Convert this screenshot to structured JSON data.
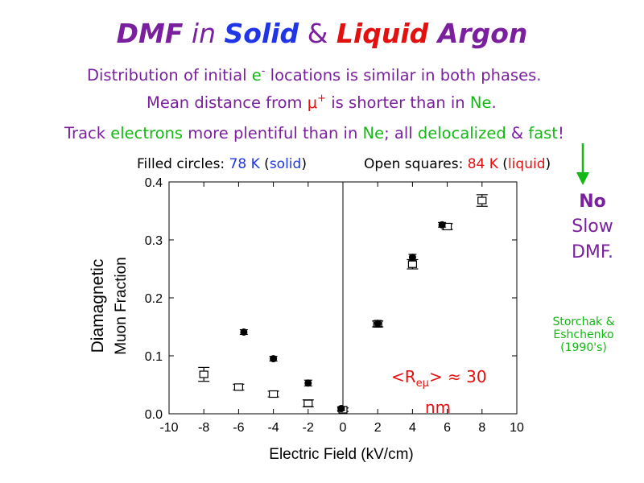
{
  "title": {
    "part1": "DMF",
    "part2": " in ",
    "part3": "Solid",
    "part4": " & ",
    "part5": "Liquid",
    "part6": " Argon"
  },
  "line1": {
    "pre": "Distribution of initial ",
    "e": "e",
    "sup": "-",
    "post": " locations is similar in both phases."
  },
  "line2": {
    "pre": "Mean distance from ",
    "mu": "μ",
    "sup": "+",
    "mid": " is shorter than in ",
    "ne": "Ne",
    "end": "."
  },
  "line3": {
    "a": "Track ",
    "b": "electrons",
    "c": " more plentiful than in ",
    "d": "Ne",
    "e": "; all ",
    "f": "delocalized",
    "g": " & ",
    "h": "fast",
    "i": "!"
  },
  "legend": {
    "filled_label": "Filled circles: ",
    "filled_temp": "78 K",
    "filled_open": " (",
    "filled_phase": "solid",
    "filled_close": ")",
    "open_label": "Open squares: ",
    "open_temp": "84 K",
    "open_open": " (",
    "open_phase": "liquid",
    "open_close": ")"
  },
  "side_note": {
    "line1": "No",
    "line2": "Slow",
    "line3": "DMF."
  },
  "credit": {
    "line1": "Storchak &",
    "line2": "Eshchenko",
    "line3": "(1990's)"
  },
  "annotation": {
    "r_pre": "<R",
    "r_sub": "eμ",
    "r_post": "> ≈ 30",
    "unit": "nm"
  },
  "colors": {
    "purple": "#7a1f9e",
    "blue": "#1f35e6",
    "red": "#e31010",
    "green": "#14b814"
  },
  "chart_data": {
    "type": "scatter",
    "xlabel": "Electric Field (kV/cm)",
    "ylabel_line1": "Diamagnetic",
    "ylabel_line2": "Muon Fraction",
    "xlim": [
      -10,
      10
    ],
    "ylim": [
      0.0,
      0.4
    ],
    "xticks": [
      -10,
      -8,
      -6,
      -4,
      -2,
      0,
      2,
      4,
      6,
      8,
      10
    ],
    "yticks": [
      0.0,
      0.1,
      0.2,
      0.3,
      0.4
    ],
    "xtick_labels": [
      "-10",
      "-8",
      "-6",
      "-4",
      "-2",
      "0",
      "2",
      "4",
      "6",
      "8",
      "10"
    ],
    "ytick_labels": [
      "0.0",
      "0.1",
      "0.2",
      "0.3",
      "0.4"
    ],
    "grid": false,
    "series": [
      {
        "name": "Filled circles: 78 K (solid)",
        "marker": "filled-circle",
        "x": [
          -5.7,
          -4.0,
          -2.0,
          -0.1,
          2.0,
          4.0,
          5.7
        ],
        "y": [
          0.141,
          0.095,
          0.053,
          0.009,
          0.156,
          0.27,
          0.326
        ],
        "err": [
          0.004,
          0.004,
          0.005,
          0.003,
          0.005,
          0.005,
          0.004
        ]
      },
      {
        "name": "Open squares: 84 K (liquid)",
        "marker": "open-square",
        "x": [
          -8.0,
          -6.0,
          -4.0,
          -2.0,
          0.0,
          2.0,
          4.0,
          6.0,
          8.0
        ],
        "y": [
          0.068,
          0.046,
          0.034,
          0.018,
          0.007,
          0.155,
          0.258,
          0.323,
          0.368
        ],
        "err": [
          0.012,
          0.005,
          0.005,
          0.006,
          0.003,
          0.005,
          0.008,
          0.005,
          0.01
        ]
      }
    ]
  }
}
